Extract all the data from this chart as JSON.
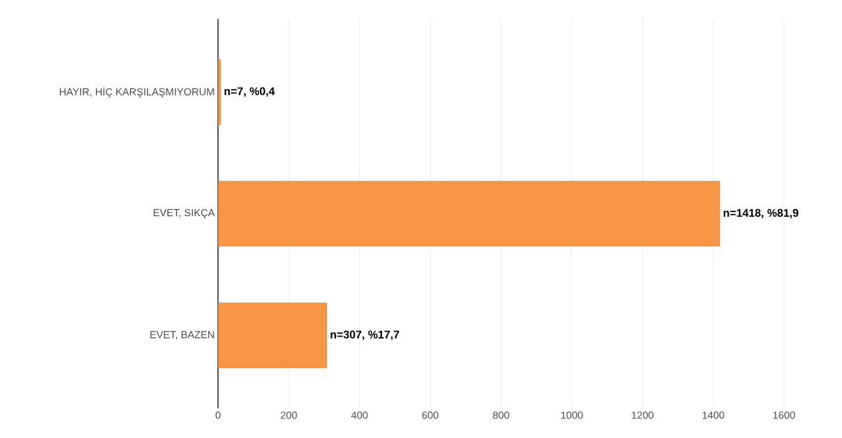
{
  "chart_data": {
    "type": "bar",
    "orientation": "horizontal",
    "categories": [
      "HAYIR, HİÇ KARŞILAŞMIYORUM",
      "EVET, SIKÇA",
      "EVET, BAZEN"
    ],
    "values": [
      7,
      1418,
      307
    ],
    "value_labels": [
      "n=7, %0,4",
      "n=1418, %81,9",
      "n=307, %17,7"
    ],
    "color": "#f79646",
    "xlim": [
      0,
      1600
    ],
    "xticks": [
      0,
      200,
      400,
      600,
      800,
      1000,
      1200,
      1400,
      1600
    ],
    "grid": "x"
  }
}
